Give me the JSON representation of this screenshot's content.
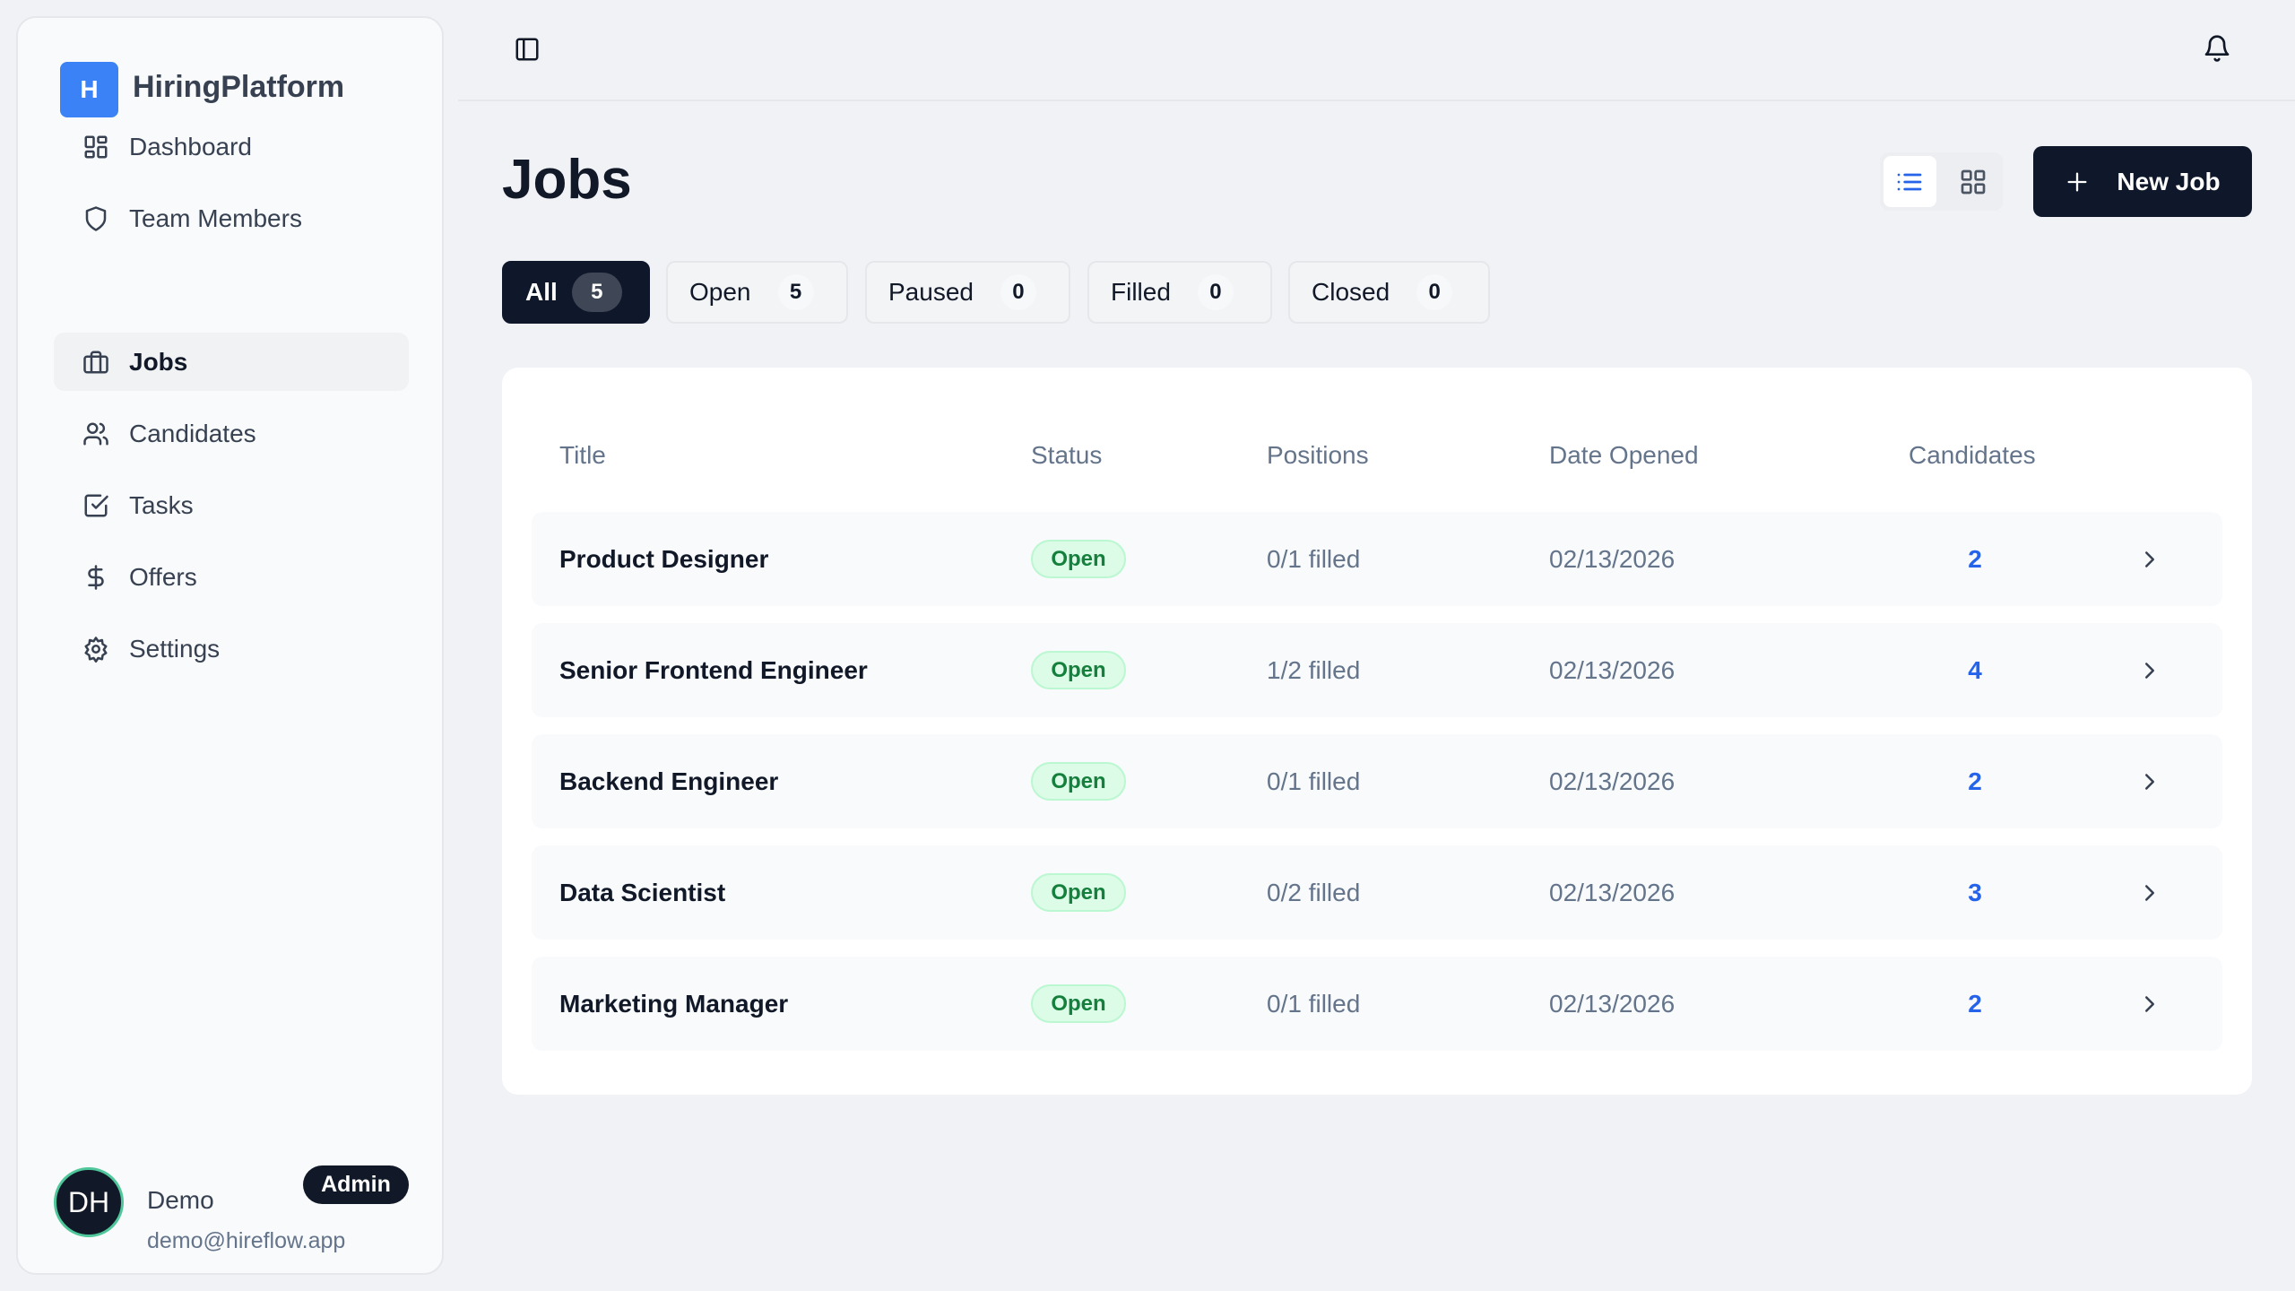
{
  "brand": {
    "logo_letter": "H",
    "name": "HiringPlatform",
    "accent": "#3b82f6"
  },
  "sidebar": {
    "items": [
      {
        "label": "Dashboard",
        "icon": "dashboard-icon"
      },
      {
        "label": "Team Members",
        "icon": "shield-icon"
      },
      {
        "label": "Jobs",
        "icon": "briefcase-icon",
        "active": true
      },
      {
        "label": "Candidates",
        "icon": "users-icon"
      },
      {
        "label": "Tasks",
        "icon": "checkbox-icon"
      },
      {
        "label": "Offers",
        "icon": "dollar-icon"
      },
      {
        "label": "Settings",
        "icon": "gear-icon"
      }
    ]
  },
  "user": {
    "initials": "DH",
    "name": "Demo",
    "role": "Admin",
    "email": "demo@hireflow.app"
  },
  "header": {
    "title": "Jobs",
    "new_job_label": "New Job",
    "view": "list"
  },
  "tabs": [
    {
      "label": "All",
      "count": "5",
      "active": true
    },
    {
      "label": "Open",
      "count": "5"
    },
    {
      "label": "Paused",
      "count": "0"
    },
    {
      "label": "Filled",
      "count": "0"
    },
    {
      "label": "Closed",
      "count": "0"
    }
  ],
  "table": {
    "columns": [
      "Title",
      "Status",
      "Positions",
      "Date Opened",
      "Candidates"
    ],
    "rows": [
      {
        "title": "Product Designer",
        "status": "Open",
        "positions": "0/1 filled",
        "date": "02/13/2026",
        "candidates": "2"
      },
      {
        "title": "Senior Frontend Engineer",
        "status": "Open",
        "positions": "1/2 filled",
        "date": "02/13/2026",
        "candidates": "4"
      },
      {
        "title": "Backend Engineer",
        "status": "Open",
        "positions": "0/1 filled",
        "date": "02/13/2026",
        "candidates": "2"
      },
      {
        "title": "Data Scientist",
        "status": "Open",
        "positions": "0/2 filled",
        "date": "02/13/2026",
        "candidates": "3"
      },
      {
        "title": "Marketing Manager",
        "status": "Open",
        "positions": "0/1 filled",
        "date": "02/13/2026",
        "candidates": "2"
      }
    ]
  }
}
